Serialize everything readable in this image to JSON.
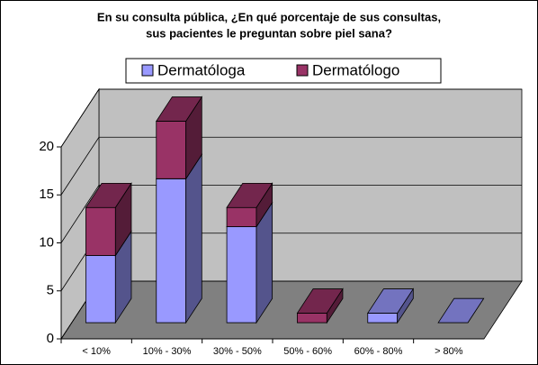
{
  "chart_data": {
    "type": "bar3d_stacked",
    "title": [
      "En su consulta pública, ¿En qué porcentaje de sus consultas,",
      "sus pacientes le preguntan sobre piel sana?"
    ],
    "categories": [
      "< 10%",
      "10% - 30%",
      "30% - 50%",
      "50% - 60%",
      "60% - 80%",
      "> 80%"
    ],
    "series": [
      {
        "name": "Dermatóloga",
        "color": "#9999ff",
        "values": [
          7,
          15,
          10,
          0,
          1,
          0
        ]
      },
      {
        "name": "Dermatólogo",
        "color": "#993366",
        "values": [
          5,
          6,
          2,
          1,
          0,
          0
        ]
      }
    ],
    "ylim": [
      0,
      20
    ],
    "yticks": [
      0,
      5,
      10,
      15,
      20
    ],
    "grid": true,
    "legend": "top"
  }
}
